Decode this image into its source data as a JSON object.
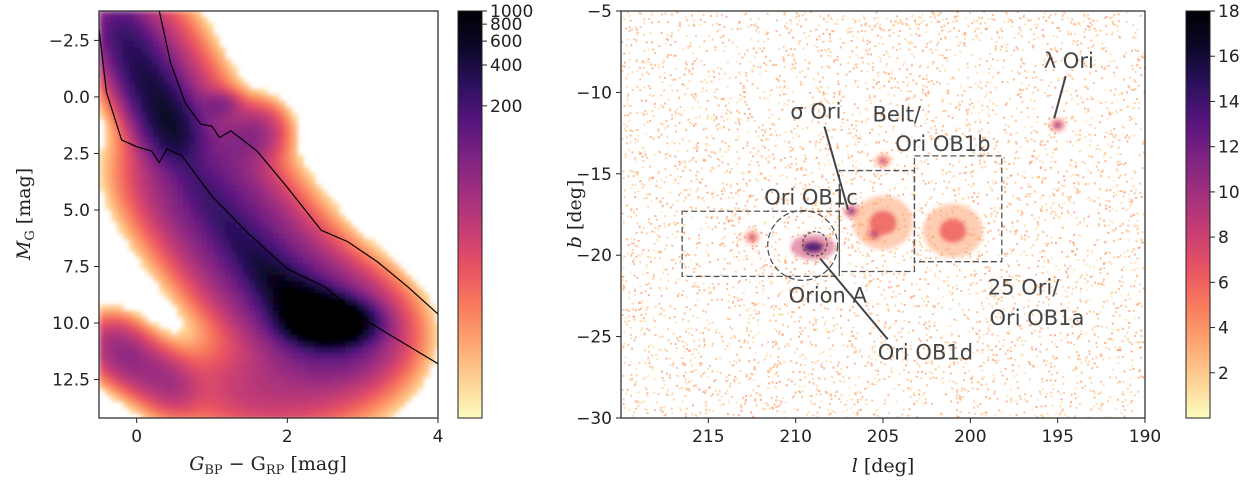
{
  "colors": {
    "cmap": [
      "#fcfdbf",
      "#fed395",
      "#fea772",
      "#f97c5d",
      "#e95462",
      "#c83e73",
      "#a3307e",
      "#7e2482",
      "#57157e",
      "#2c115f",
      "#0d0829",
      "#000004"
    ],
    "frame": "#222222",
    "annotation": "#444444"
  },
  "chart_data": [
    {
      "type": "heatmap",
      "title": "",
      "xlabel_main": "G",
      "xlabel_sub1": "BP",
      "xlabel_mid": " − G",
      "xlabel_sub2": "RP",
      "xlabel_unit": " [mag]",
      "ylabel_main": "M",
      "ylabel_sub": "G",
      "ylabel_unit": " [mag]",
      "xlim": [
        -0.5,
        4
      ],
      "ylim": [
        14.2,
        -3.8
      ],
      "y_inverted": true,
      "xticks": [
        {
          "v": 0,
          "label": "0"
        },
        {
          "v": 2,
          "label": "2"
        },
        {
          "v": 4,
          "label": "4"
        }
      ],
      "yticks": [
        {
          "v": -2.5,
          "label": "−2.5"
        },
        {
          "v": 0,
          "label": "0.0"
        },
        {
          "v": 2.5,
          "label": "2.5"
        },
        {
          "v": 5,
          "label": "5.0"
        },
        {
          "v": 7.5,
          "label": "7.5"
        },
        {
          "v": 10,
          "label": "10.0"
        },
        {
          "v": 12.5,
          "label": "12.5"
        }
      ],
      "colorbar": {
        "scale": "log",
        "range": [
          1,
          1000
        ],
        "ticks": [
          {
            "v": 200,
            "label": "200"
          },
          {
            "v": 400,
            "label": "400"
          },
          {
            "v": 600,
            "label": "600"
          },
          {
            "v": 800,
            "label": "800"
          },
          {
            "v": 1000,
            "label": "1000"
          }
        ]
      },
      "density_features": [
        {
          "name": "main-sequence",
          "ridge": [
            [
              0.55,
              2.3
            ],
            [
              0.9,
              4.2
            ],
            [
              1.3,
              6.0
            ],
            [
              1.7,
              7.6
            ],
            [
              2.1,
              8.9
            ],
            [
              2.4,
              9.7
            ],
            [
              2.6,
              10.1
            ]
          ],
          "peak": 1000
        },
        {
          "name": "upper-sequence",
          "ridge": [
            [
              -0.3,
              -3.5
            ],
            [
              0.0,
              -1.5
            ],
            [
              0.3,
              0.3
            ],
            [
              0.55,
              2.0
            ]
          ],
          "peak": 80
        },
        {
          "name": "red-clump",
          "center": [
            1.1,
            0.4
          ],
          "peak": 60
        },
        {
          "name": "white-dwarfs",
          "ridge": [
            [
              -0.4,
              10.8
            ],
            [
              0.0,
              11.8
            ],
            [
              0.6,
              13.0
            ]
          ],
          "peak": 8
        },
        {
          "name": "field-faint",
          "center": [
            1.8,
            12.8
          ],
          "peak": 30
        },
        {
          "name": "giant-branch",
          "ridge": [
            [
              1.3,
              2.0
            ],
            [
              1.7,
              1.5
            ]
          ],
          "peak": 8
        }
      ],
      "selection_lines": [
        {
          "name": "upper-boundary",
          "points": [
            [
              0.3,
              -3.8
            ],
            [
              0.45,
              -1.5
            ],
            [
              0.65,
              0.3
            ],
            [
              0.85,
              1.2
            ],
            [
              1.0,
              1.3
            ],
            [
              1.1,
              1.8
            ],
            [
              1.25,
              1.5
            ],
            [
              1.6,
              2.4
            ],
            [
              2.0,
              4.0
            ],
            [
              2.45,
              5.9
            ],
            [
              2.8,
              6.4
            ],
            [
              3.2,
              7.3
            ],
            [
              3.6,
              8.4
            ],
            [
              4.0,
              9.6
            ]
          ]
        },
        {
          "name": "lower-boundary",
          "points": [
            [
              -0.5,
              -3.0
            ],
            [
              -0.4,
              -0.2
            ],
            [
              -0.2,
              1.9
            ],
            [
              0.0,
              2.2
            ],
            [
              0.2,
              2.4
            ],
            [
              0.3,
              2.9
            ],
            [
              0.4,
              2.3
            ],
            [
              0.6,
              2.6
            ],
            [
              1.0,
              4.4
            ],
            [
              1.5,
              6.1
            ],
            [
              2.0,
              7.6
            ],
            [
              2.5,
              8.4
            ],
            [
              3.0,
              9.8
            ],
            [
              3.5,
              10.8
            ],
            [
              4.0,
              11.8
            ]
          ]
        }
      ]
    },
    {
      "type": "heatmap",
      "title": "",
      "xlabel_main": "l",
      "xlabel_unit": " [deg]",
      "ylabel_main": "b",
      "ylabel_unit": " [deg]",
      "xlim": [
        220,
        190
      ],
      "ylim": [
        -30,
        -5
      ],
      "x_inverted": true,
      "xticks": [
        {
          "v": 215,
          "label": "215"
        },
        {
          "v": 210,
          "label": "210"
        },
        {
          "v": 205,
          "label": "205"
        },
        {
          "v": 200,
          "label": "200"
        },
        {
          "v": 195,
          "label": "195"
        },
        {
          "v": 190,
          "label": "190"
        }
      ],
      "yticks": [
        {
          "v": -5,
          "label": "−5"
        },
        {
          "v": -10,
          "label": "−10"
        },
        {
          "v": -15,
          "label": "−15"
        },
        {
          "v": -20,
          "label": "−20"
        },
        {
          "v": -25,
          "label": "−25"
        },
        {
          "v": -30,
          "label": "−30"
        }
      ],
      "colorbar": {
        "scale": "linear",
        "range": [
          0,
          18
        ],
        "ticks": [
          {
            "v": 2,
            "label": "2"
          },
          {
            "v": 4,
            "label": "4"
          },
          {
            "v": 6,
            "label": "6"
          },
          {
            "v": 8,
            "label": "8"
          },
          {
            "v": 10,
            "label": "10"
          },
          {
            "v": 12,
            "label": "12"
          },
          {
            "v": 14,
            "label": "14"
          },
          {
            "v": 16,
            "label": "16"
          },
          {
            "v": 18,
            "label": "18"
          }
        ]
      },
      "density_features": [
        {
          "name": "orion-a",
          "center": [
            209.0,
            -19.5
          ],
          "peak": 14
        },
        {
          "name": "sigma-ori",
          "center": [
            206.8,
            -17.3
          ],
          "peak": 12
        },
        {
          "name": "belt",
          "center": [
            205.0,
            -18.0
          ],
          "peak": 6
        },
        {
          "name": "ob1b-knot",
          "center": [
            205.5,
            -18.7
          ],
          "peak": 10
        },
        {
          "name": "25-ori",
          "center": [
            201.0,
            -18.5
          ],
          "peak": 6
        },
        {
          "name": "ob1c-knot",
          "center": [
            212.5,
            -18.9
          ],
          "peak": 8
        },
        {
          "name": "lambda-ori",
          "center": [
            195.0,
            -12.0
          ],
          "peak": 10
        },
        {
          "name": "ob1b-top",
          "center": [
            205.0,
            -14.2
          ],
          "peak": 8
        }
      ],
      "regions": [
        {
          "name": "ori-ob1c-box",
          "shape": "box",
          "l": [
            216.5,
            207.5
          ],
          "b": [
            -21.3,
            -17.3
          ]
        },
        {
          "name": "belt-box",
          "shape": "box",
          "l": [
            207.5,
            203.2
          ],
          "b": [
            -21.0,
            -14.8
          ]
        },
        {
          "name": "ori-ob1a-box",
          "shape": "box",
          "l": [
            203.2,
            198.2
          ],
          "b": [
            -20.4,
            -13.9
          ]
        },
        {
          "name": "orion-a-circle",
          "shape": "circle",
          "center": [
            209.6,
            -19.4
          ],
          "radius": 2.0
        },
        {
          "name": "ori-ob1d-circle",
          "shape": "circle",
          "center": [
            208.9,
            -19.3
          ],
          "radius": 0.7
        }
      ],
      "annotations": [
        {
          "name": "lambda-ori",
          "text": "λ Ori",
          "at": [
            195.8,
            -8.5
          ],
          "arrow_to": [
            195.2,
            -11.6
          ]
        },
        {
          "name": "sigma-ori",
          "text": "σ Ori",
          "at": [
            210.3,
            -11.6
          ],
          "arrow_to": [
            207.0,
            -17.2
          ]
        },
        {
          "name": "belt-line1",
          "text": "Belt/",
          "at": [
            205.6,
            -11.8
          ]
        },
        {
          "name": "belt-line2",
          "text": "Ori OB1b",
          "at": [
            204.3,
            -13.6
          ]
        },
        {
          "name": "ori-ob1c",
          "text": "Ori OB1c",
          "at": [
            211.8,
            -16.9
          ]
        },
        {
          "name": "ori-ob1a-line1",
          "text": "25 Ori/",
          "at": [
            199.0,
            -22.4
          ]
        },
        {
          "name": "ori-ob1a-line2",
          "text": "Ori OB1a",
          "at": [
            198.9,
            -24.3
          ]
        },
        {
          "name": "orion-a",
          "text": "Orion A",
          "at": [
            210.4,
            -22.9
          ]
        },
        {
          "name": "ori-ob1d",
          "text": "Ori OB1d",
          "at": [
            205.3,
            -26.4
          ],
          "arrow_to": [
            208.6,
            -20.2
          ]
        }
      ]
    }
  ]
}
